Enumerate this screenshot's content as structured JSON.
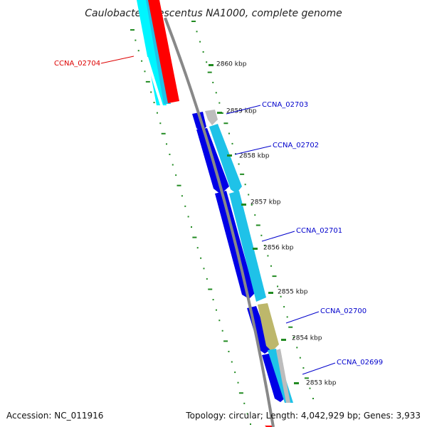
{
  "title": "Caulobacter crescentus NA1000, complete genome",
  "accession": "Accession: NC_011916",
  "topology_info": "Topology: circular; Length: 4,042,929 bp; Genes: 3,933",
  "colors": {
    "backbone": "#888888",
    "ruler": "#228B22",
    "forward_strand": "#1FC2E8",
    "reverse_strand": "#0000E6",
    "red_gene": "#FF0000",
    "cyan_gene": "#00F5FF",
    "gray_gene": "#BDBDBD",
    "olive_gene": "#BDB76B",
    "label_blue": "#0000CC",
    "label_red": "#DD0000"
  },
  "ticks": [
    {
      "label": "2860 kbp"
    },
    {
      "label": "2859 kbp"
    },
    {
      "label": "2858 kbp"
    },
    {
      "label": "2857 kbp"
    },
    {
      "label": "2856 kbp"
    },
    {
      "label": "2855 kbp"
    },
    {
      "label": "2854 kbp"
    },
    {
      "label": "2853 kbp"
    }
  ],
  "genes": [
    {
      "name": "CCNA_02704"
    },
    {
      "name": "CCNA_02703"
    },
    {
      "name": "CCNA_02702"
    },
    {
      "name": "CCNA_02701"
    },
    {
      "name": "CCNA_02700"
    },
    {
      "name": "CCNA_02699"
    }
  ]
}
